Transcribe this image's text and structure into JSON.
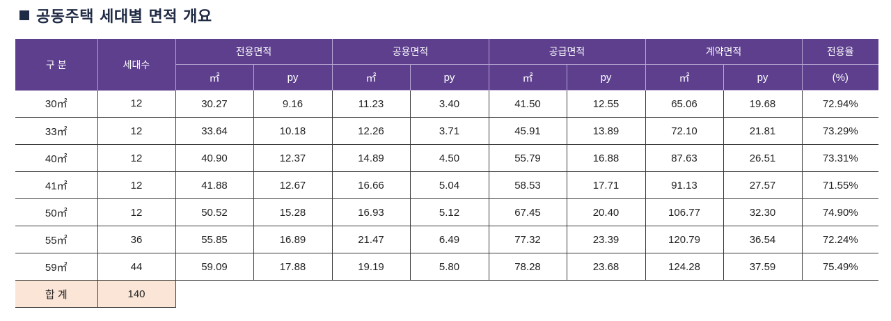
{
  "title": "공동주택 세대별 면적 개요",
  "table": {
    "header": {
      "type_label": "구 분",
      "units_label": "세대수",
      "groups": [
        "전용면적",
        "공용면적",
        "공급면적",
        "계약면적"
      ],
      "ratio_label": "전용율",
      "sub_m2": "㎡",
      "sub_py": "py",
      "sub_pct": "(%)"
    },
    "rows": [
      {
        "type": "30㎡",
        "units": "12",
        "excl_m2": "30.27",
        "excl_py": "9.16",
        "common_m2": "11.23",
        "common_py": "3.40",
        "supply_m2": "41.50",
        "supply_py": "12.55",
        "contract_m2": "65.06",
        "contract_py": "19.68",
        "ratio": "72.94%"
      },
      {
        "type": "33㎡",
        "units": "12",
        "excl_m2": "33.64",
        "excl_py": "10.18",
        "common_m2": "12.26",
        "common_py": "3.71",
        "supply_m2": "45.91",
        "supply_py": "13.89",
        "contract_m2": "72.10",
        "contract_py": "21.81",
        "ratio": "73.29%"
      },
      {
        "type": "40㎡",
        "units": "12",
        "excl_m2": "40.90",
        "excl_py": "12.37",
        "common_m2": "14.89",
        "common_py": "4.50",
        "supply_m2": "55.79",
        "supply_py": "16.88",
        "contract_m2": "87.63",
        "contract_py": "26.51",
        "ratio": "73.31%"
      },
      {
        "type": "41㎡",
        "units": "12",
        "excl_m2": "41.88",
        "excl_py": "12.67",
        "common_m2": "16.66",
        "common_py": "5.04",
        "supply_m2": "58.53",
        "supply_py": "17.71",
        "contract_m2": "91.13",
        "contract_py": "27.57",
        "ratio": "71.55%"
      },
      {
        "type": "50㎡",
        "units": "12",
        "excl_m2": "50.52",
        "excl_py": "15.28",
        "common_m2": "16.93",
        "common_py": "5.12",
        "supply_m2": "67.45",
        "supply_py": "20.40",
        "contract_m2": "106.77",
        "contract_py": "32.30",
        "ratio": "74.90%"
      },
      {
        "type": "55㎡",
        "units": "36",
        "excl_m2": "55.85",
        "excl_py": "16.89",
        "common_m2": "21.47",
        "common_py": "6.49",
        "supply_m2": "77.32",
        "supply_py": "23.39",
        "contract_m2": "120.79",
        "contract_py": "36.54",
        "ratio": "72.24%"
      },
      {
        "type": "59㎡",
        "units": "44",
        "excl_m2": "59.09",
        "excl_py": "17.88",
        "common_m2": "19.19",
        "common_py": "5.80",
        "supply_m2": "78.28",
        "supply_py": "23.68",
        "contract_m2": "124.28",
        "contract_py": "37.59",
        "ratio": "75.49%"
      }
    ],
    "total": {
      "label": "합 계",
      "units": "140"
    }
  },
  "colors": {
    "header_bg": "#5d3f8e",
    "total_bg": "#fbe5d6",
    "title_color": "#1f2a44"
  }
}
